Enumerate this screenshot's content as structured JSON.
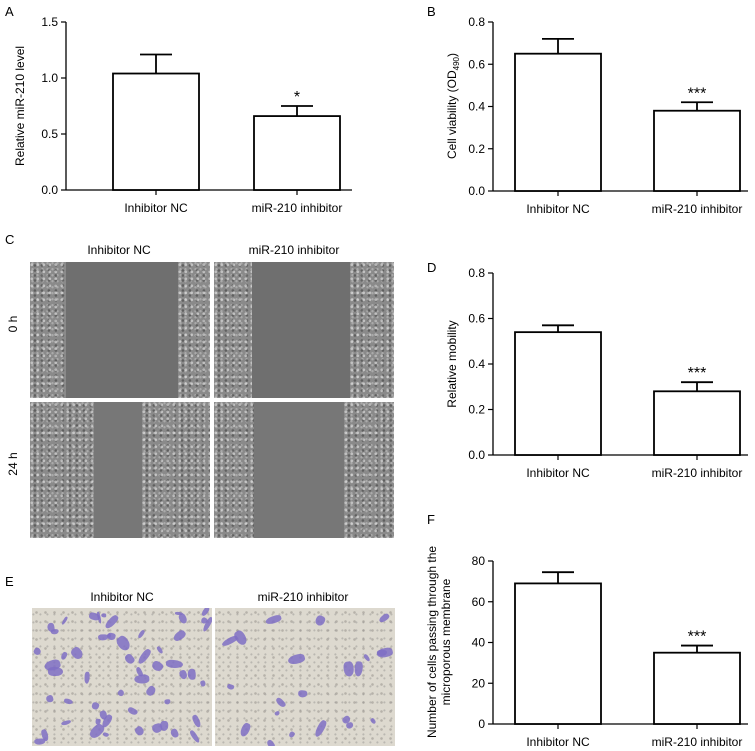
{
  "panels": {
    "A": "A",
    "B": "B",
    "C": "C",
    "D": "D",
    "E": "E",
    "F": "F"
  },
  "images": {
    "col_labels": [
      "Inhibitor NC",
      "miR-210 inhibitor"
    ],
    "row_labels": [
      "0 h",
      "24 h"
    ],
    "transwell_col_labels": [
      "Inhibitor NC",
      "miR-210 inhibitor"
    ]
  },
  "colors": {
    "bar_fill": "#ffffff",
    "stroke": "#000000",
    "stain": "#7f6fc4"
  },
  "chart_data": [
    {
      "id": "A",
      "type": "bar",
      "categories": [
        "Inhibitor NC",
        "miR-210 inhibitor"
      ],
      "values": [
        1.04,
        0.66
      ],
      "errors": [
        0.17,
        0.09
      ],
      "significance": [
        "",
        "*"
      ],
      "ylabel": "Relative miR-210 level",
      "ylim": [
        0,
        1.5
      ],
      "yticks": [
        "0.0",
        "0.5",
        "1.0",
        "1.5"
      ],
      "grid": false
    },
    {
      "id": "B",
      "type": "bar",
      "categories": [
        "Inhibitor NC",
        "miR-210 inhibitor"
      ],
      "values": [
        0.65,
        0.38
      ],
      "errors": [
        0.07,
        0.04
      ],
      "significance": [
        "",
        "***"
      ],
      "ylabel": "Cell viability (OD",
      "ylabel_sub": "490",
      "ylabel_end": ")",
      "ylim": [
        0,
        0.8
      ],
      "yticks": [
        "0.0",
        "0.2",
        "0.4",
        "0.6",
        "0.8"
      ],
      "grid": false
    },
    {
      "id": "D",
      "type": "bar",
      "categories": [
        "Inhibitor NC",
        "miR-210 inhibitor"
      ],
      "values": [
        0.54,
        0.28
      ],
      "errors": [
        0.03,
        0.04
      ],
      "significance": [
        "",
        "***"
      ],
      "ylabel": "Relative mobility",
      "ylim": [
        0,
        0.8
      ],
      "yticks": [
        "0.0",
        "0.2",
        "0.4",
        "0.6",
        "0.8"
      ],
      "grid": false
    },
    {
      "id": "F",
      "type": "bar",
      "categories": [
        "Inhibitor NC",
        "miR-210 inhibitor"
      ],
      "values": [
        69,
        35
      ],
      "errors": [
        5.5,
        3.5
      ],
      "significance": [
        "",
        "***"
      ],
      "ylabel_lines": [
        "Number of cells passing through the",
        "microporous membrane"
      ],
      "ylim": [
        0,
        80
      ],
      "yticks": [
        "0",
        "20",
        "40",
        "60",
        "80"
      ],
      "grid": false
    }
  ]
}
